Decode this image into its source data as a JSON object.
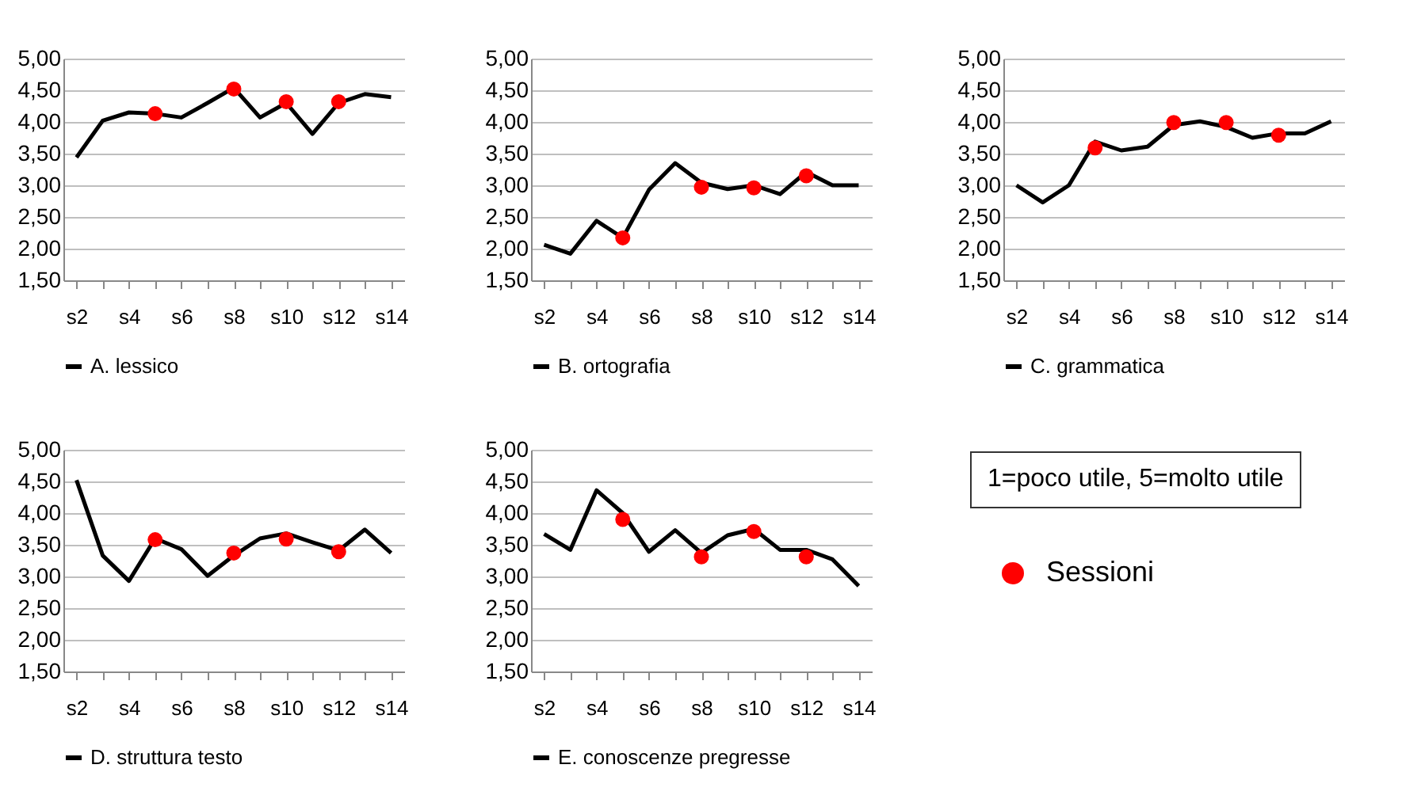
{
  "chart_data": [
    {
      "type": "line",
      "categories": [
        "s2",
        null,
        "s4",
        null,
        "s6",
        null,
        "s8",
        null,
        "s10",
        null,
        "s12",
        null,
        "s14"
      ],
      "series": [
        {
          "name": "A. lessico",
          "color": "#000000",
          "values": [
            3.44,
            4.02,
            4.15,
            4.13,
            4.07,
            4.3,
            4.54,
            4.07,
            4.3,
            3.81,
            4.3,
            4.44,
            4.39
          ]
        },
        {
          "type": "scatter",
          "color": "#ff0000",
          "values": [
            null,
            null,
            null,
            4.13,
            null,
            null,
            4.52,
            null,
            4.32,
            null,
            4.32,
            null,
            null
          ]
        }
      ],
      "ylim": [
        1.5,
        5
      ],
      "yticks": [
        {
          "value": 1.5,
          "label": "1,50"
        },
        {
          "value": 2,
          "label": "2,00"
        },
        {
          "value": 2.5,
          "label": "2,50"
        },
        {
          "value": 3,
          "label": "3,00"
        },
        {
          "value": 3.5,
          "label": "3,50"
        },
        {
          "value": 4,
          "label": "4,00"
        },
        {
          "value": 4.5,
          "label": "4,50"
        },
        {
          "value": 5,
          "label": "5,00"
        }
      ],
      "grid": "y",
      "legend": "bottom"
    },
    {
      "type": "line",
      "categories": [
        "s2",
        null,
        "s4",
        null,
        "s6",
        null,
        "s8",
        null,
        "s10",
        null,
        "s12",
        null,
        "s14"
      ],
      "series": [
        {
          "name": "B. ortografia",
          "color": "#000000",
          "values": [
            2.06,
            1.92,
            2.44,
            2.17,
            2.93,
            3.35,
            3.04,
            2.94,
            3.0,
            2.86,
            3.21,
            3.0,
            3.0
          ]
        },
        {
          "type": "scatter",
          "color": "#ff0000",
          "values": [
            null,
            null,
            null,
            2.17,
            null,
            null,
            2.97,
            null,
            2.96,
            null,
            3.15,
            null,
            null
          ]
        }
      ],
      "ylim": [
        1.5,
        5
      ],
      "yticks": [
        {
          "value": 1.5,
          "label": "1,50"
        },
        {
          "value": 2,
          "label": "2,00"
        },
        {
          "value": 2.5,
          "label": "2,50"
        },
        {
          "value": 3,
          "label": "3,00"
        },
        {
          "value": 3.5,
          "label": "3,50"
        },
        {
          "value": 4,
          "label": "4,00"
        },
        {
          "value": 4.5,
          "label": "4,50"
        },
        {
          "value": 5,
          "label": "5,00"
        }
      ],
      "grid": "y",
      "legend": "bottom"
    },
    {
      "type": "line",
      "categories": [
        "s2",
        null,
        "s4",
        null,
        "s6",
        null,
        "s8",
        null,
        "s10",
        null,
        "s12",
        null,
        "s14"
      ],
      "series": [
        {
          "name": "C. grammatica",
          "color": "#000000",
          "values": [
            3.0,
            2.73,
            3.0,
            3.69,
            3.55,
            3.61,
            3.95,
            4.01,
            3.92,
            3.75,
            3.82,
            3.82,
            4.01
          ]
        },
        {
          "type": "scatter",
          "color": "#ff0000",
          "values": [
            null,
            null,
            null,
            3.59,
            null,
            null,
            3.99,
            null,
            3.99,
            null,
            3.79,
            null,
            null
          ]
        }
      ],
      "ylim": [
        1.5,
        5
      ],
      "yticks": [
        {
          "value": 1.5,
          "label": "1,50"
        },
        {
          "value": 2,
          "label": "2,00"
        },
        {
          "value": 2.5,
          "label": "2,50"
        },
        {
          "value": 3,
          "label": "3,00"
        },
        {
          "value": 3.5,
          "label": "3,50"
        },
        {
          "value": 4,
          "label": "4,00"
        },
        {
          "value": 4.5,
          "label": "4,50"
        },
        {
          "value": 5,
          "label": "5,00"
        }
      ],
      "grid": "y",
      "legend": "bottom"
    },
    {
      "type": "line",
      "categories": [
        "s2",
        null,
        "s4",
        null,
        "s6",
        null,
        "s8",
        null,
        "s10",
        null,
        "s12",
        null,
        "s14"
      ],
      "series": [
        {
          "name": "D. struttura testo",
          "color": "#000000",
          "values": [
            4.52,
            3.33,
            2.93,
            3.6,
            3.43,
            3.01,
            3.33,
            3.6,
            3.68,
            3.54,
            3.41,
            3.74,
            3.37
          ]
        },
        {
          "type": "scatter",
          "color": "#ff0000",
          "values": [
            null,
            null,
            null,
            3.58,
            null,
            null,
            3.37,
            null,
            3.59,
            null,
            3.39,
            null,
            null
          ]
        }
      ],
      "ylim": [
        1.5,
        5
      ],
      "yticks": [
        {
          "value": 1.5,
          "label": "1,50"
        },
        {
          "value": 2,
          "label": "2,00"
        },
        {
          "value": 2.5,
          "label": "2,50"
        },
        {
          "value": 3,
          "label": "3,00"
        },
        {
          "value": 3.5,
          "label": "3,50"
        },
        {
          "value": 4,
          "label": "4,00"
        },
        {
          "value": 4.5,
          "label": "4,50"
        },
        {
          "value": 5,
          "label": "5,00"
        }
      ],
      "grid": "y",
      "legend": "bottom"
    },
    {
      "type": "line",
      "categories": [
        "s2",
        null,
        "s4",
        null,
        "s6",
        null,
        "s8",
        null,
        "s10",
        null,
        "s12",
        null,
        "s14"
      ],
      "series": [
        {
          "name": "E. conoscenze pregresse",
          "color": "#000000",
          "values": [
            3.67,
            3.42,
            4.36,
            4.0,
            3.39,
            3.73,
            3.37,
            3.65,
            3.75,
            3.42,
            3.42,
            3.27,
            2.85
          ]
        },
        {
          "type": "scatter",
          "color": "#ff0000",
          "values": [
            null,
            null,
            null,
            3.9,
            null,
            null,
            3.31,
            null,
            3.71,
            null,
            3.31,
            null,
            null
          ]
        }
      ],
      "ylim": [
        1.5,
        5
      ],
      "yticks": [
        {
          "value": 1.5,
          "label": "1,50"
        },
        {
          "value": 2,
          "label": "2,00"
        },
        {
          "value": 2.5,
          "label": "2,50"
        },
        {
          "value": 3,
          "label": "3,00"
        },
        {
          "value": 3.5,
          "label": "3,50"
        },
        {
          "value": 4,
          "label": "4,00"
        },
        {
          "value": 4.5,
          "label": "4,50"
        },
        {
          "value": 5,
          "label": "5,00"
        }
      ],
      "grid": "y",
      "legend": "bottom"
    },
    {
      "type": "other",
      "annotations": [
        "1=poco utile, 5=molto utile",
        "Sessioni"
      ]
    }
  ]
}
